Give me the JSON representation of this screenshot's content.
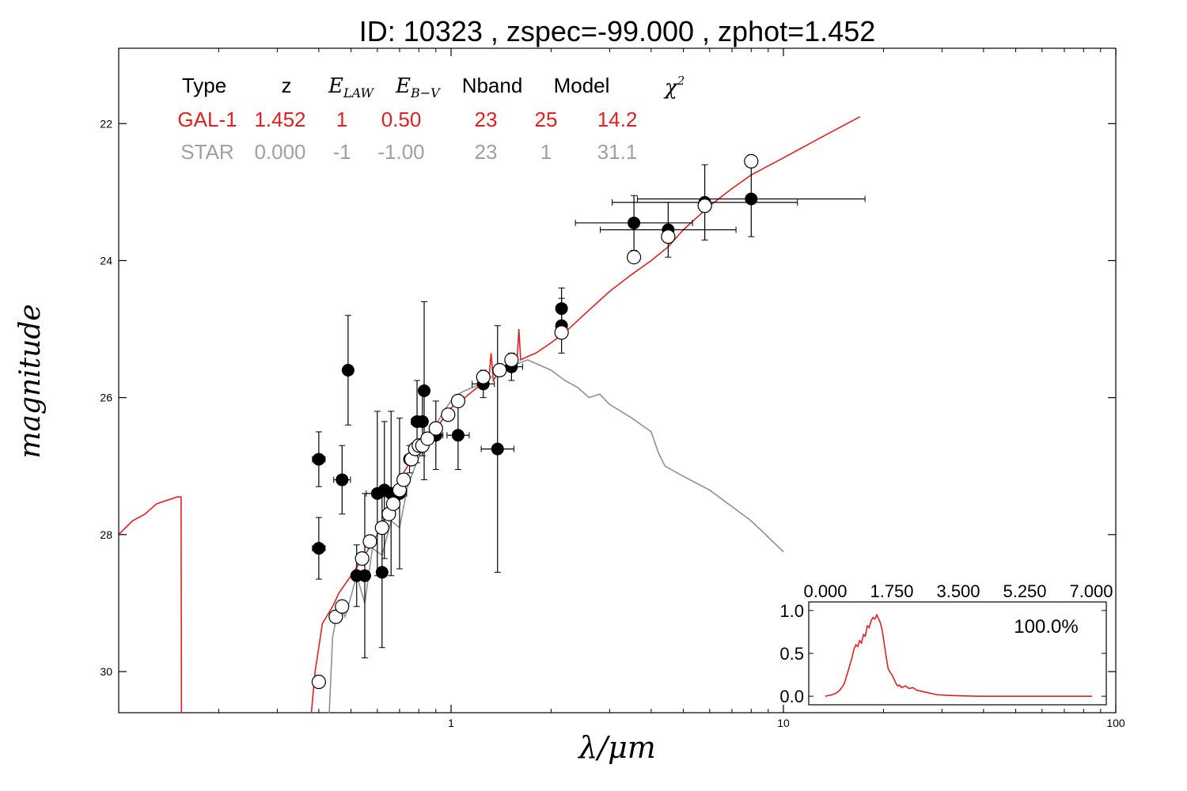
{
  "chart_data": [
    {
      "type": "scatter",
      "title": "ID:  10323 , zspec=-99.000 , zphot=1.452",
      "xlabel": "λ/μm",
      "ylabel": "magnitude",
      "x_scale": "log",
      "xlim": [
        0.1,
        100
      ],
      "ylim": [
        30.6,
        20.9
      ],
      "y_inverted": true,
      "x_tick_labels": [
        "1",
        "10",
        "100"
      ],
      "y_tick_labels": [
        "22",
        "24",
        "26",
        "28",
        "30"
      ],
      "y_ticks": [
        22,
        24,
        26,
        28,
        30
      ],
      "grid": false,
      "table": {
        "headers": [
          "Type",
          "z",
          "E_LAW",
          "E_B−V",
          "Nband",
          "Model",
          "χ²"
        ],
        "rows": [
          {
            "name": "GAL-1",
            "color": "#e02020",
            "values": [
              "GAL-1",
              "1.452",
              "1",
              "0.50",
              "23",
              "25",
              "14.2"
            ]
          },
          {
            "name": "STAR",
            "color": "#a0a0a0",
            "values": [
              "STAR",
              "0.000",
              "-1",
              "-1.00",
              "23",
              "1",
              "31.1"
            ]
          }
        ]
      },
      "series": [
        {
          "name": "GAL-1",
          "kind": "model_line",
          "color": "#e02020",
          "points": [
            [
              0.1,
              28.0
            ],
            [
              0.11,
              27.8
            ],
            [
              0.12,
              27.7
            ],
            [
              0.13,
              27.55
            ],
            [
              0.15,
              27.45
            ],
            [
              0.154,
              27.45
            ],
            [
              0.1545,
              30.6
            ]
          ]
        },
        {
          "name": "GAL-1",
          "kind": "model_line",
          "color": "#e02020",
          "points": [
            [
              0.38,
              30.6
            ],
            [
              0.39,
              30.0
            ],
            [
              0.41,
              29.3
            ],
            [
              0.44,
              29.05
            ],
            [
              0.46,
              28.85
            ],
            [
              0.5,
              28.6
            ],
            [
              0.55,
              28.3
            ],
            [
              0.6,
              28.0
            ],
            [
              0.65,
              27.6
            ],
            [
              0.7,
              27.2
            ],
            [
              0.75,
              26.95
            ],
            [
              0.8,
              26.75
            ],
            [
              0.85,
              26.6
            ],
            [
              0.9,
              26.45
            ],
            [
              0.95,
              26.3
            ],
            [
              1.0,
              26.15
            ],
            [
              1.1,
              26.0
            ],
            [
              1.2,
              25.85
            ],
            [
              1.3,
              25.72
            ],
            [
              1.32,
              25.35
            ],
            [
              1.34,
              25.75
            ],
            [
              1.4,
              25.6
            ],
            [
              1.5,
              25.48
            ],
            [
              1.58,
              25.45
            ],
            [
              1.6,
              25.0
            ],
            [
              1.62,
              25.45
            ],
            [
              1.7,
              25.4
            ],
            [
              1.8,
              25.35
            ],
            [
              2.0,
              25.2
            ],
            [
              2.2,
              25.05
            ],
            [
              2.5,
              24.8
            ],
            [
              3.0,
              24.45
            ],
            [
              3.5,
              24.2
            ],
            [
              4.0,
              24.0
            ],
            [
              4.5,
              23.8
            ],
            [
              5.0,
              23.55
            ],
            [
              6.0,
              23.2
            ],
            [
              7.0,
              22.95
            ],
            [
              8.0,
              22.75
            ],
            [
              10.0,
              22.5
            ],
            [
              13.0,
              22.2
            ],
            [
              17.0,
              21.9
            ]
          ]
        },
        {
          "name": "STAR",
          "kind": "model_line",
          "color": "#909090",
          "points": [
            [
              0.43,
              30.6
            ],
            [
              0.44,
              29.5
            ],
            [
              0.46,
              29.0
            ],
            [
              0.48,
              29.2
            ],
            [
              0.5,
              28.9
            ],
            [
              0.52,
              28.6
            ],
            [
              0.55,
              29.0
            ],
            [
              0.58,
              28.2
            ],
            [
              0.62,
              28.3
            ],
            [
              0.66,
              27.8
            ],
            [
              0.7,
              27.9
            ],
            [
              0.74,
              27.3
            ],
            [
              0.78,
              27.0
            ],
            [
              0.82,
              26.75
            ],
            [
              0.86,
              26.55
            ],
            [
              0.9,
              26.4
            ],
            [
              0.95,
              26.2
            ],
            [
              1.0,
              26.05
            ],
            [
              1.05,
              25.95
            ],
            [
              1.1,
              25.9
            ],
            [
              1.2,
              25.82
            ],
            [
              1.3,
              25.72
            ],
            [
              1.5,
              25.55
            ],
            [
              1.7,
              25.45
            ],
            [
              2.0,
              25.6
            ],
            [
              2.2,
              25.75
            ],
            [
              2.4,
              25.85
            ],
            [
              2.6,
              26.0
            ],
            [
              2.8,
              25.95
            ],
            [
              3.0,
              26.1
            ],
            [
              3.5,
              26.3
            ],
            [
              4.0,
              26.5
            ],
            [
              4.2,
              26.8
            ],
            [
              4.4,
              27.0
            ],
            [
              5.0,
              27.15
            ],
            [
              6.0,
              27.35
            ],
            [
              8.0,
              27.8
            ],
            [
              10.0,
              28.25
            ]
          ]
        },
        {
          "name": "observed",
          "kind": "points_filled",
          "points": [
            [
              0.4,
              26.9,
              0.4,
              0.045
            ],
            [
              0.4,
              28.2,
              0.45,
              0.045
            ],
            [
              0.47,
              27.2,
              0.5,
              0.06
            ],
            [
              0.49,
              25.6,
              0.8,
              0.0
            ],
            [
              0.52,
              28.6,
              0.45,
              0.03
            ],
            [
              0.55,
              28.6,
              1.2,
              0.03
            ],
            [
              0.6,
              27.4,
              1.2,
              0.08
            ],
            [
              0.62,
              28.55,
              1.1,
              0.0
            ],
            [
              0.63,
              27.35,
              1.0,
              0.05
            ],
            [
              0.66,
              27.4,
              1.2,
              0.05
            ],
            [
              0.7,
              27.4,
              1.1,
              0.05
            ],
            [
              0.75,
              26.9,
              0.2,
              0.03
            ],
            [
              0.79,
              26.35,
              0.6,
              0.04
            ],
            [
              0.82,
              26.35,
              0.5,
              0.03
            ],
            [
              0.83,
              25.9,
              1.3,
              0.03
            ],
            [
              0.9,
              26.55,
              0.5,
              0.05
            ],
            [
              1.05,
              26.55,
              0.5,
              0.08
            ],
            [
              1.25,
              25.8,
              0.2,
              0.08
            ],
            [
              1.38,
              26.75,
              1.8,
              0.12
            ],
            [
              1.52,
              25.55,
              0.2,
              0.08
            ],
            [
              2.15,
              24.7,
              0.3,
              0.0
            ],
            [
              2.15,
              24.95,
              0.4,
              0.0
            ],
            [
              3.55,
              23.45,
              0.4,
              0.5
            ],
            [
              4.5,
              23.55,
              0.4,
              0.6
            ],
            [
              5.8,
              23.15,
              0.55,
              0.9
            ],
            [
              8.0,
              23.1,
              0.55,
              1.2
            ]
          ]
        },
        {
          "name": "model",
          "kind": "points_open",
          "points": [
            [
              0.4,
              30.15,
              0.0,
              0.0
            ],
            [
              0.45,
              29.2,
              0.0,
              0.045
            ],
            [
              0.47,
              29.05,
              0.0,
              0.04
            ],
            [
              0.54,
              28.35,
              0.0,
              0.0
            ],
            [
              0.57,
              28.1,
              0.0,
              0.0
            ],
            [
              0.62,
              27.9,
              0.0,
              0.0
            ],
            [
              0.65,
              27.7,
              0.0,
              0.0
            ],
            [
              0.67,
              27.55,
              0.0,
              0.0
            ],
            [
              0.7,
              27.35,
              0.0,
              0.0
            ],
            [
              0.72,
              27.2,
              0.0,
              0.0
            ],
            [
              0.76,
              26.9,
              0.0,
              0.0
            ],
            [
              0.78,
              26.75,
              0.0,
              0.0
            ],
            [
              0.8,
              26.7,
              0.0,
              0.0
            ],
            [
              0.82,
              26.7,
              0.0,
              0.0
            ],
            [
              0.85,
              26.6,
              0.0,
              0.0
            ],
            [
              0.9,
              26.45,
              0.0,
              0.0
            ],
            [
              0.98,
              26.25,
              0.0,
              0.0
            ],
            [
              1.05,
              26.05,
              0.0,
              0.0
            ],
            [
              1.25,
              25.7,
              0.0,
              0.0
            ],
            [
              1.4,
              25.6,
              0.0,
              0.0
            ],
            [
              1.52,
              25.45,
              0.0,
              0.0
            ],
            [
              2.15,
              25.05,
              0.0,
              0.0
            ],
            [
              3.55,
              23.95,
              0.0,
              0.0
            ],
            [
              4.5,
              23.65,
              0.0,
              0.0
            ],
            [
              5.8,
              23.2,
              0.0,
              0.0
            ],
            [
              8.0,
              22.55,
              0.0,
              0.0
            ]
          ]
        }
      ]
    },
    {
      "type": "line",
      "title": "",
      "xlim": [
        0.0,
        7.0
      ],
      "ylim": [
        -0.1,
        1.1
      ],
      "x_tick_labels": [
        "0.000",
        "1.750",
        "3.500",
        "5.250",
        "7.000"
      ],
      "y_tick_labels": [
        "1.0",
        "0.5",
        "0.0"
      ],
      "annotation": "100.0%",
      "series": [
        {
          "color": "#e02020",
          "x": [
            0.0,
            0.1,
            0.2,
            0.3,
            0.4,
            0.5,
            0.6,
            0.7,
            0.75,
            0.8,
            0.85,
            0.9,
            0.95,
            1.0,
            1.05,
            1.1,
            1.15,
            1.2,
            1.25,
            1.3,
            1.35,
            1.4,
            1.45,
            1.5,
            1.55,
            1.6,
            1.65,
            1.7,
            1.75,
            1.8,
            1.85,
            1.9,
            1.95,
            2.0,
            2.1,
            2.2,
            2.3,
            2.4,
            2.5,
            2.6,
            2.7,
            2.8,
            2.9,
            3.0,
            3.2,
            3.5,
            4.0,
            5.0,
            6.0,
            7.0
          ],
          "y": [
            0.0,
            0.01,
            0.02,
            0.04,
            0.08,
            0.15,
            0.3,
            0.45,
            0.55,
            0.6,
            0.58,
            0.65,
            0.62,
            0.72,
            0.7,
            0.82,
            0.8,
            0.88,
            0.92,
            0.9,
            0.95,
            0.9,
            0.85,
            0.75,
            0.6,
            0.45,
            0.32,
            0.28,
            0.25,
            0.2,
            0.15,
            0.12,
            0.13,
            0.1,
            0.12,
            0.09,
            0.1,
            0.07,
            0.06,
            0.05,
            0.04,
            0.03,
            0.02,
            0.015,
            0.01,
            0.005,
            0.0,
            0.0,
            0.0,
            0.0
          ]
        }
      ]
    }
  ]
}
